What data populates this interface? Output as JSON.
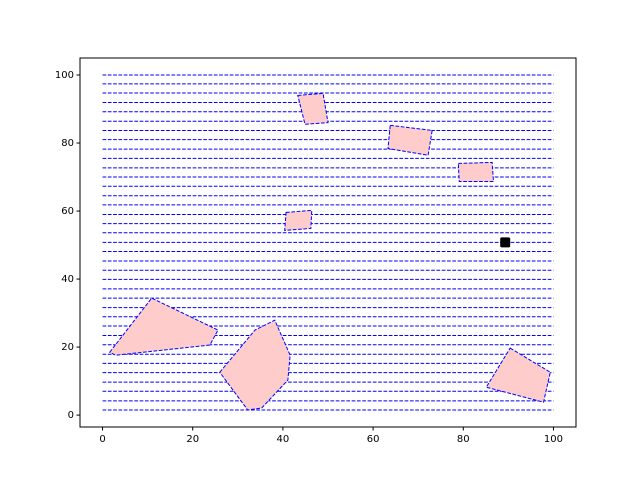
{
  "chart_data": {
    "type": "coverage",
    "xlim": [
      -5,
      105
    ],
    "ylim": [
      -3.5,
      105
    ],
    "xticks": [
      0,
      20,
      40,
      60,
      80,
      100
    ],
    "yticks": [
      0,
      20,
      40,
      60,
      80,
      100
    ],
    "sweep_color": "#0000ff",
    "sweep_x": [
      0,
      100
    ],
    "sweep_y": [
      1.5,
      4.2,
      7.0,
      9.7,
      12.5,
      15.2,
      17.9,
      20.7,
      23.4,
      26.2,
      28.9,
      31.6,
      34.4,
      37.1,
      39.9,
      42.6,
      45.3,
      48.1,
      50.8,
      53.6,
      56.3,
      59.0,
      61.8,
      64.5,
      67.3,
      70.0,
      72.7,
      75.5,
      78.2,
      81.0,
      83.7,
      86.4,
      89.2,
      91.9,
      94.7,
      97.4,
      100
    ],
    "obstacle_color": "#ffcccc",
    "obstacles": [
      {
        "x": [
          43.3,
          48.9,
          50.0,
          44.9
        ],
        "y": [
          94.0,
          94.6,
          86.0,
          85.5
        ]
      },
      {
        "x": [
          63.8,
          73.1,
          72.2,
          63.3
        ],
        "y": [
          85.2,
          83.7,
          76.4,
          78.4
        ]
      },
      {
        "x": [
          78.9,
          86.4,
          86.7,
          79.1
        ],
        "y": [
          74.0,
          74.3,
          68.7,
          68.7
        ]
      },
      {
        "x": [
          40.7,
          46.4,
          46.2,
          40.4
        ],
        "y": [
          59.6,
          60.2,
          54.9,
          54.3
        ]
      },
      {
        "x": [
          1.6,
          10.9,
          25.6,
          23.8,
          2.9
        ],
        "y": [
          18.5,
          34.4,
          25.0,
          20.6,
          17.6
        ]
      },
      {
        "x": [
          26.0,
          33.8,
          38.2,
          41.6,
          41.1,
          35.3,
          32.2
        ],
        "y": [
          12.6,
          25.0,
          27.9,
          17.6,
          10.3,
          2.1,
          1.5
        ]
      },
      {
        "x": [
          90.4,
          99.3,
          97.8,
          85.1
        ],
        "y": [
          19.7,
          12.6,
          3.8,
          8.2
        ]
      }
    ],
    "robot": {
      "x": 89.3,
      "y": 50.8,
      "color": "#000000"
    }
  }
}
